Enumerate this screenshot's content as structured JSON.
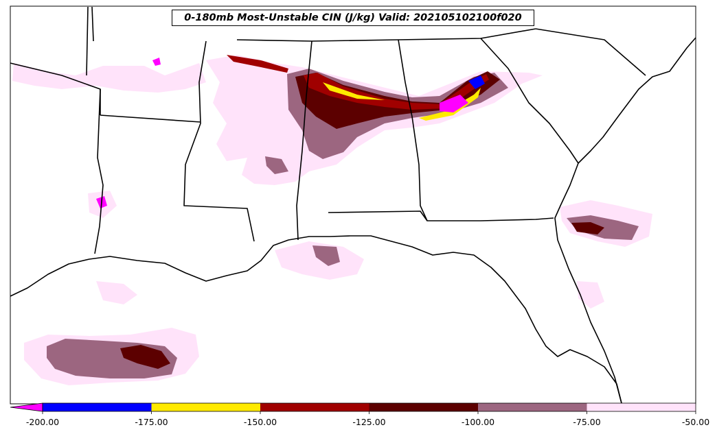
{
  "title": "0-180mb Most-Unstable CIN (J/kg) Valid: 202105102100f020",
  "colorbar": {
    "extend": "min",
    "extend_color": "#ff00ff",
    "bins": [
      {
        "from": -200,
        "to": -175,
        "color": "#0000ff"
      },
      {
        "from": -175,
        "to": -150,
        "color": "#ffea00"
      },
      {
        "from": -150,
        "to": -125,
        "color": "#a00000"
      },
      {
        "from": -125,
        "to": -100,
        "color": "#5c0000"
      },
      {
        "from": -100,
        "to": -75,
        "color": "#9c6680"
      },
      {
        "from": -75,
        "to": -50,
        "color": "#ffe3fa"
      }
    ],
    "tick_labels": [
      "-200.00",
      "-175.00",
      "-150.00",
      "-125.00",
      "-100.00",
      "-75.00",
      "-50.00"
    ]
  },
  "map": {
    "region": "Southeastern United States and Gulf of Mexico",
    "boundaries": [
      "coastline",
      "state borders"
    ],
    "field_colors": {
      "light": "#ffe3fa",
      "mauve": "#9c6680",
      "dark": "#5c0000",
      "red": "#a00000",
      "yellow": "#ffea00",
      "blue": "#0000ff",
      "magenta": "#ff00ff"
    }
  }
}
